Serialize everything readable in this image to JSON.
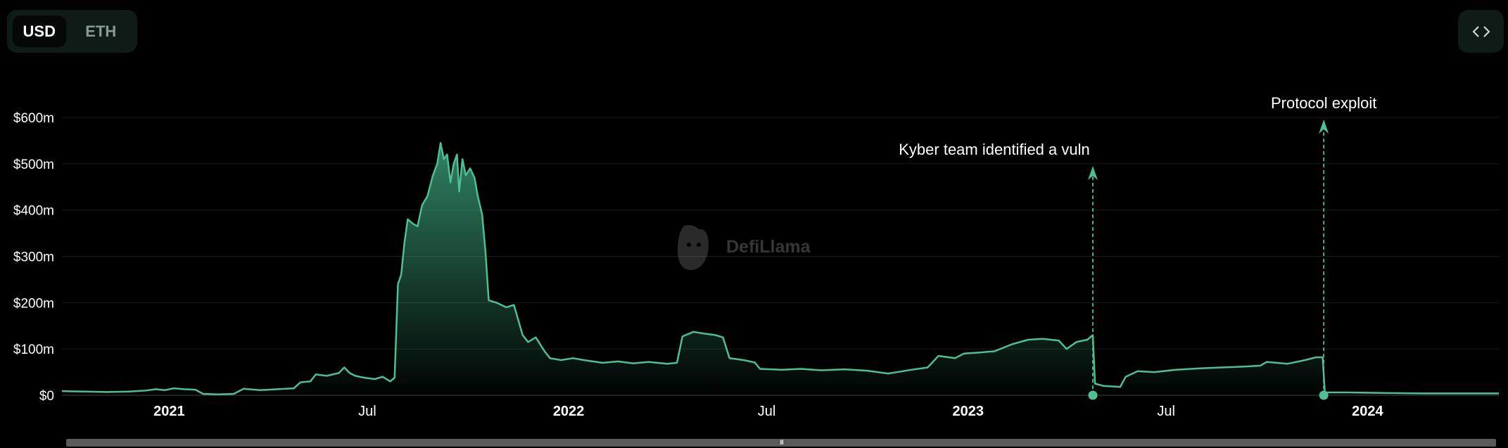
{
  "currency_toggle": {
    "options": [
      {
        "label": "USD",
        "active": true
      },
      {
        "label": "ETH",
        "active": false
      }
    ]
  },
  "embed_button": {
    "icon": "code-brackets-icon"
  },
  "watermark": {
    "text": "DefiLlama",
    "icon": "llama-logo-icon"
  },
  "scrollbar": {
    "grip": "III"
  },
  "colors": {
    "line": "#4fbf93",
    "area_top": "#3fae83",
    "grid": "#1c1c1c",
    "axis_text": "#ffffff",
    "background": "#000000"
  },
  "chart_data": {
    "type": "area",
    "title": "",
    "xlabel": "",
    "ylabel": "",
    "y_tick_labels": [
      "$0",
      "$100m",
      "$200m",
      "$300m",
      "$400m",
      "$500m",
      "$600m"
    ],
    "y_tick_values": [
      0,
      100,
      200,
      300,
      400,
      500,
      600
    ],
    "x_tick_labels": [
      "2021",
      "Jul",
      "2022",
      "Jul",
      "2023",
      "Jul",
      "2024"
    ],
    "x_tick_dates": [
      "2021-01-01",
      "2021-07-01",
      "2022-01-01",
      "2022-07-01",
      "2023-01-01",
      "2023-07-01",
      "2024-01-01"
    ],
    "x_tick_bold": [
      true,
      false,
      true,
      false,
      true,
      false,
      true
    ],
    "xlim": [
      "2020-09-25",
      "2024-04-30"
    ],
    "ylim": [
      0,
      600
    ],
    "grid": true,
    "series": [
      {
        "unit": "$m",
        "points": [
          [
            "2020-09-25",
            9
          ],
          [
            "2020-10-15",
            8
          ],
          [
            "2020-11-05",
            7
          ],
          [
            "2020-11-25",
            8
          ],
          [
            "2020-12-10",
            10
          ],
          [
            "2020-12-20",
            13
          ],
          [
            "2020-12-28",
            11
          ],
          [
            "2021-01-05",
            15
          ],
          [
            "2021-01-15",
            13
          ],
          [
            "2021-01-25",
            12
          ],
          [
            "2021-02-01",
            3
          ],
          [
            "2021-02-15",
            2
          ],
          [
            "2021-03-01",
            3
          ],
          [
            "2021-03-10",
            14
          ],
          [
            "2021-03-25",
            11
          ],
          [
            "2021-04-10",
            13
          ],
          [
            "2021-04-25",
            15
          ],
          [
            "2021-05-01",
            28
          ],
          [
            "2021-05-10",
            30
          ],
          [
            "2021-05-15",
            45
          ],
          [
            "2021-05-25",
            42
          ],
          [
            "2021-06-05",
            48
          ],
          [
            "2021-06-10",
            60
          ],
          [
            "2021-06-15",
            48
          ],
          [
            "2021-06-20",
            42
          ],
          [
            "2021-06-28",
            38
          ],
          [
            "2021-07-08",
            35
          ],
          [
            "2021-07-15",
            40
          ],
          [
            "2021-07-22",
            30
          ],
          [
            "2021-07-26",
            38
          ],
          [
            "2021-07-29",
            240
          ],
          [
            "2021-08-01",
            260
          ],
          [
            "2021-08-04",
            330
          ],
          [
            "2021-08-07",
            380
          ],
          [
            "2021-08-12",
            370
          ],
          [
            "2021-08-16",
            365
          ],
          [
            "2021-08-20",
            410
          ],
          [
            "2021-08-25",
            430
          ],
          [
            "2021-08-30",
            475
          ],
          [
            "2021-09-03",
            500
          ],
          [
            "2021-09-06",
            545
          ],
          [
            "2021-09-09",
            510
          ],
          [
            "2021-09-12",
            520
          ],
          [
            "2021-09-15",
            460
          ],
          [
            "2021-09-18",
            500
          ],
          [
            "2021-09-21",
            520
          ],
          [
            "2021-09-23",
            440
          ],
          [
            "2021-09-26",
            510
          ],
          [
            "2021-09-29",
            475
          ],
          [
            "2021-10-03",
            490
          ],
          [
            "2021-10-07",
            470
          ],
          [
            "2021-10-10",
            430
          ],
          [
            "2021-10-14",
            390
          ],
          [
            "2021-10-17",
            310
          ],
          [
            "2021-10-20",
            205
          ],
          [
            "2021-10-27",
            200
          ],
          [
            "2021-11-05",
            190
          ],
          [
            "2021-11-12",
            195
          ],
          [
            "2021-11-20",
            130
          ],
          [
            "2021-11-25",
            115
          ],
          [
            "2021-12-02",
            125
          ],
          [
            "2021-12-10",
            95
          ],
          [
            "2021-12-15",
            80
          ],
          [
            "2021-12-25",
            76
          ],
          [
            "2022-01-05",
            80
          ],
          [
            "2022-01-15",
            76
          ],
          [
            "2022-02-01",
            70
          ],
          [
            "2022-02-15",
            73
          ],
          [
            "2022-03-01",
            69
          ],
          [
            "2022-03-15",
            72
          ],
          [
            "2022-04-01",
            68
          ],
          [
            "2022-04-10",
            70
          ],
          [
            "2022-04-15",
            127
          ],
          [
            "2022-04-25",
            137
          ],
          [
            "2022-05-05",
            133
          ],
          [
            "2022-05-15",
            130
          ],
          [
            "2022-05-22",
            125
          ],
          [
            "2022-05-28",
            80
          ],
          [
            "2022-06-10",
            76
          ],
          [
            "2022-06-20",
            71
          ],
          [
            "2022-06-25",
            57
          ],
          [
            "2022-07-15",
            55
          ],
          [
            "2022-08-01",
            57
          ],
          [
            "2022-08-20",
            54
          ],
          [
            "2022-09-10",
            56
          ],
          [
            "2022-10-01",
            53
          ],
          [
            "2022-10-20",
            47
          ],
          [
            "2022-11-10",
            55
          ],
          [
            "2022-11-25",
            60
          ],
          [
            "2022-12-05",
            85
          ],
          [
            "2022-12-20",
            80
          ],
          [
            "2022-12-28",
            90
          ],
          [
            "2023-01-10",
            92
          ],
          [
            "2023-01-25",
            95
          ],
          [
            "2023-02-10",
            110
          ],
          [
            "2023-02-25",
            120
          ],
          [
            "2023-03-10",
            122
          ],
          [
            "2023-03-25",
            118
          ],
          [
            "2023-04-01",
            100
          ],
          [
            "2023-04-10",
            115
          ],
          [
            "2023-04-20",
            120
          ],
          [
            "2023-04-25",
            130
          ],
          [
            "2023-04-27",
            25
          ],
          [
            "2023-05-05",
            20
          ],
          [
            "2023-05-20",
            18
          ],
          [
            "2023-05-25",
            40
          ],
          [
            "2023-06-05",
            52
          ],
          [
            "2023-06-20",
            50
          ],
          [
            "2023-07-10",
            55
          ],
          [
            "2023-08-01",
            58
          ],
          [
            "2023-08-20",
            60
          ],
          [
            "2023-09-10",
            62
          ],
          [
            "2023-09-25",
            64
          ],
          [
            "2023-10-01",
            72
          ],
          [
            "2023-10-20",
            68
          ],
          [
            "2023-11-05",
            76
          ],
          [
            "2023-11-15",
            82
          ],
          [
            "2023-11-21",
            82
          ],
          [
            "2023-11-23",
            6
          ],
          [
            "2023-12-15",
            6
          ],
          [
            "2024-01-15",
            5
          ],
          [
            "2024-02-20",
            4
          ],
          [
            "2024-04-30",
            4
          ]
        ]
      }
    ],
    "annotations": [
      {
        "label": "Kyber team identified a vuln",
        "date": "2023-04-25",
        "label_side": "left"
      },
      {
        "label": "Protocol exploit",
        "date": "2023-11-22",
        "label_side": "center"
      }
    ]
  }
}
